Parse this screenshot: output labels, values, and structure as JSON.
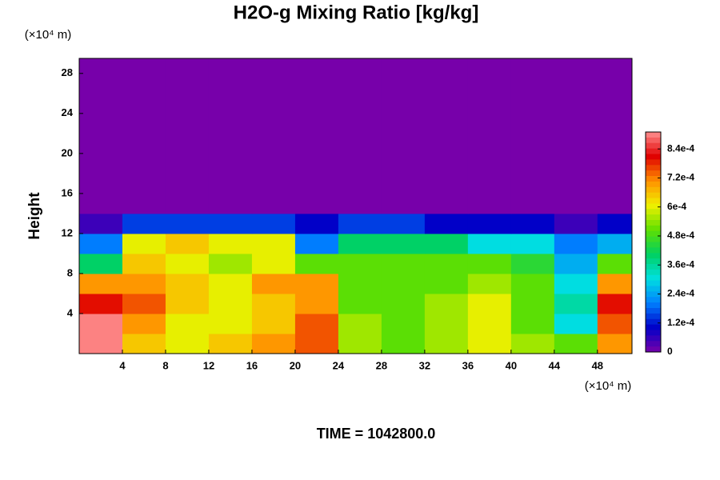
{
  "chart_data": {
    "type": "heatmap",
    "title": "H2O-g Mixing Ratio [kg/kg]",
    "y_label": "Height",
    "x_unit": "(×10⁴ m)",
    "y_unit": "(×10⁴ m)",
    "footer": "TIME = 1042800.0",
    "xlim": [
      0,
      51.2
    ],
    "ylim": [
      0,
      29.5
    ],
    "xticks": [
      4,
      8,
      12,
      16,
      20,
      24,
      28,
      32,
      36,
      40,
      44,
      48
    ],
    "yticks": [
      4,
      8,
      12,
      16,
      20,
      24,
      28
    ],
    "x": [
      2,
      6,
      10,
      14,
      18,
      22,
      26,
      30,
      34,
      38,
      42,
      46,
      50
    ],
    "y": [
      1,
      3,
      5,
      7,
      9,
      11,
      13,
      15,
      17,
      19,
      21,
      23,
      25,
      27,
      29
    ],
    "z": [
      [
        0.0009,
        0.00065,
        0.0006,
        0.00065,
        0.0007,
        0.00075,
        0.00055,
        0.0005,
        0.00055,
        0.0006,
        0.00055,
        0.0005,
        0.0007
      ],
      [
        0.0009,
        0.0007,
        0.0006,
        0.0006,
        0.00065,
        0.00075,
        0.00055,
        0.0005,
        0.00055,
        0.0006,
        0.0005,
        0.0003,
        0.00075
      ],
      [
        0.0008,
        0.00075,
        0.00065,
        0.0006,
        0.00065,
        0.0007,
        0.0005,
        0.0005,
        0.00055,
        0.0006,
        0.0005,
        0.00035,
        0.0008
      ],
      [
        0.0007,
        0.0007,
        0.00065,
        0.0006,
        0.0007,
        0.0007,
        0.0005,
        0.0005,
        0.0005,
        0.00055,
        0.0005,
        0.0003,
        0.0007
      ],
      [
        0.0004,
        0.00065,
        0.0006,
        0.00055,
        0.0006,
        0.0005,
        0.0005,
        0.0005,
        0.0005,
        0.0005,
        0.00045,
        0.00025,
        0.0005
      ],
      [
        0.0002,
        0.0006,
        0.00065,
        0.0006,
        0.0006,
        0.0002,
        0.0004,
        0.0004,
        0.0004,
        0.0003,
        0.0003,
        0.0002,
        0.00025
      ],
      [
        5e-05,
        0.00015,
        0.00015,
        0.00015,
        0.00015,
        0.0001,
        0.00015,
        0.00015,
        0.0001,
        0.0001,
        0.0001,
        5e-05,
        0.0001
      ],
      [
        0,
        0,
        0,
        0,
        0,
        0,
        0,
        0,
        0,
        0,
        0,
        0,
        0
      ],
      [
        0,
        0,
        0,
        0,
        0,
        0,
        0,
        0,
        0,
        0,
        0,
        0,
        0
      ],
      [
        0,
        0,
        0,
        0,
        0,
        0,
        0,
        0,
        0,
        0,
        0,
        0,
        0
      ],
      [
        0,
        0,
        0,
        0,
        0,
        0,
        0,
        0,
        0,
        0,
        0,
        0,
        0
      ],
      [
        0,
        0,
        0,
        0,
        0,
        0,
        0,
        0,
        0,
        0,
        0,
        0,
        0
      ],
      [
        0,
        0,
        0,
        0,
        0,
        0,
        0,
        0,
        0,
        0,
        0,
        0,
        0
      ],
      [
        0,
        0,
        0,
        0,
        0,
        0,
        0,
        0,
        0,
        0,
        0,
        0,
        0
      ],
      [
        0,
        0,
        0,
        0,
        0,
        0,
        0,
        0,
        0,
        0,
        0,
        0,
        0
      ]
    ],
    "clim": [
      0,
      0.00091
    ],
    "cticks": [
      0,
      {
        "value": 0.00012,
        "label": "1.2e-4"
      },
      {
        "value": 0.00024,
        "label": "2.4e-4"
      },
      {
        "value": 0.00036,
        "label": "3.6e-4"
      },
      {
        "value": 0.00048,
        "label": "4.8e-4"
      },
      {
        "value": 0.0006,
        "label": "6e-4"
      },
      {
        "value": 0.00072,
        "label": "7.2e-4"
      },
      {
        "value": 0.00084,
        "label": "8.4e-4"
      }
    ],
    "colormap": [
      "#7700aa",
      "#0000c8",
      "#0080ff",
      "#00e0e0",
      "#00d060",
      "#60e000",
      "#f0f000",
      "#ff9000",
      "#e00000",
      "#ff9090"
    ]
  }
}
